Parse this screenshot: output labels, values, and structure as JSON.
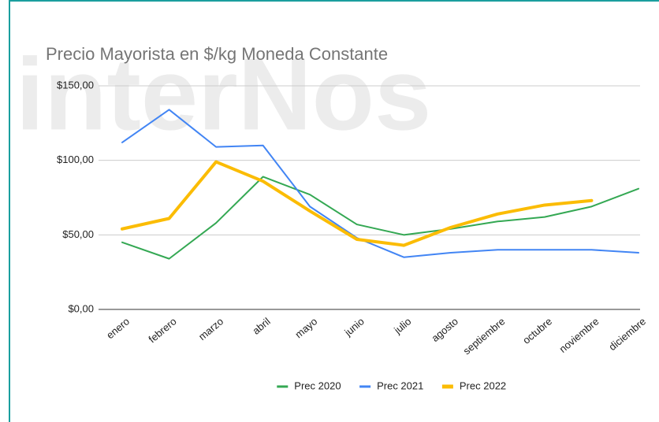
{
  "chart_data": {
    "type": "line",
    "title": "Precio Mayorista en $/kg Moneda Constante",
    "watermark": "interNos",
    "categories": [
      "enero",
      "febrero",
      "marzo",
      "abril",
      "mayo",
      "junio",
      "julio",
      "agosto",
      "septiembre",
      "octubre",
      "noviembre",
      "diciembre"
    ],
    "series": [
      {
        "name": "Prec 2020",
        "color": "#34a853",
        "width": 2,
        "values": [
          45,
          34,
          58,
          89,
          77,
          57,
          50,
          54,
          59,
          62,
          69,
          81
        ]
      },
      {
        "name": "Prec 2021",
        "color": "#4285f4",
        "width": 2,
        "values": [
          112,
          134,
          109,
          110,
          69,
          48,
          35,
          38,
          40,
          40,
          40,
          38
        ]
      },
      {
        "name": "Prec 2022",
        "color": "#fbbc04",
        "width": 4,
        "values": [
          54,
          61,
          99,
          86,
          66,
          47,
          43,
          55,
          64,
          70,
          73,
          null
        ]
      }
    ],
    "ylim": [
      0,
      150
    ],
    "yticks": [
      {
        "value": 0,
        "label": "$0,00"
      },
      {
        "value": 50,
        "label": "$50,00"
      },
      {
        "value": 100,
        "label": "$100,00"
      },
      {
        "value": 150,
        "label": "$150,00"
      }
    ],
    "grid": true,
    "legend": "bottom"
  }
}
